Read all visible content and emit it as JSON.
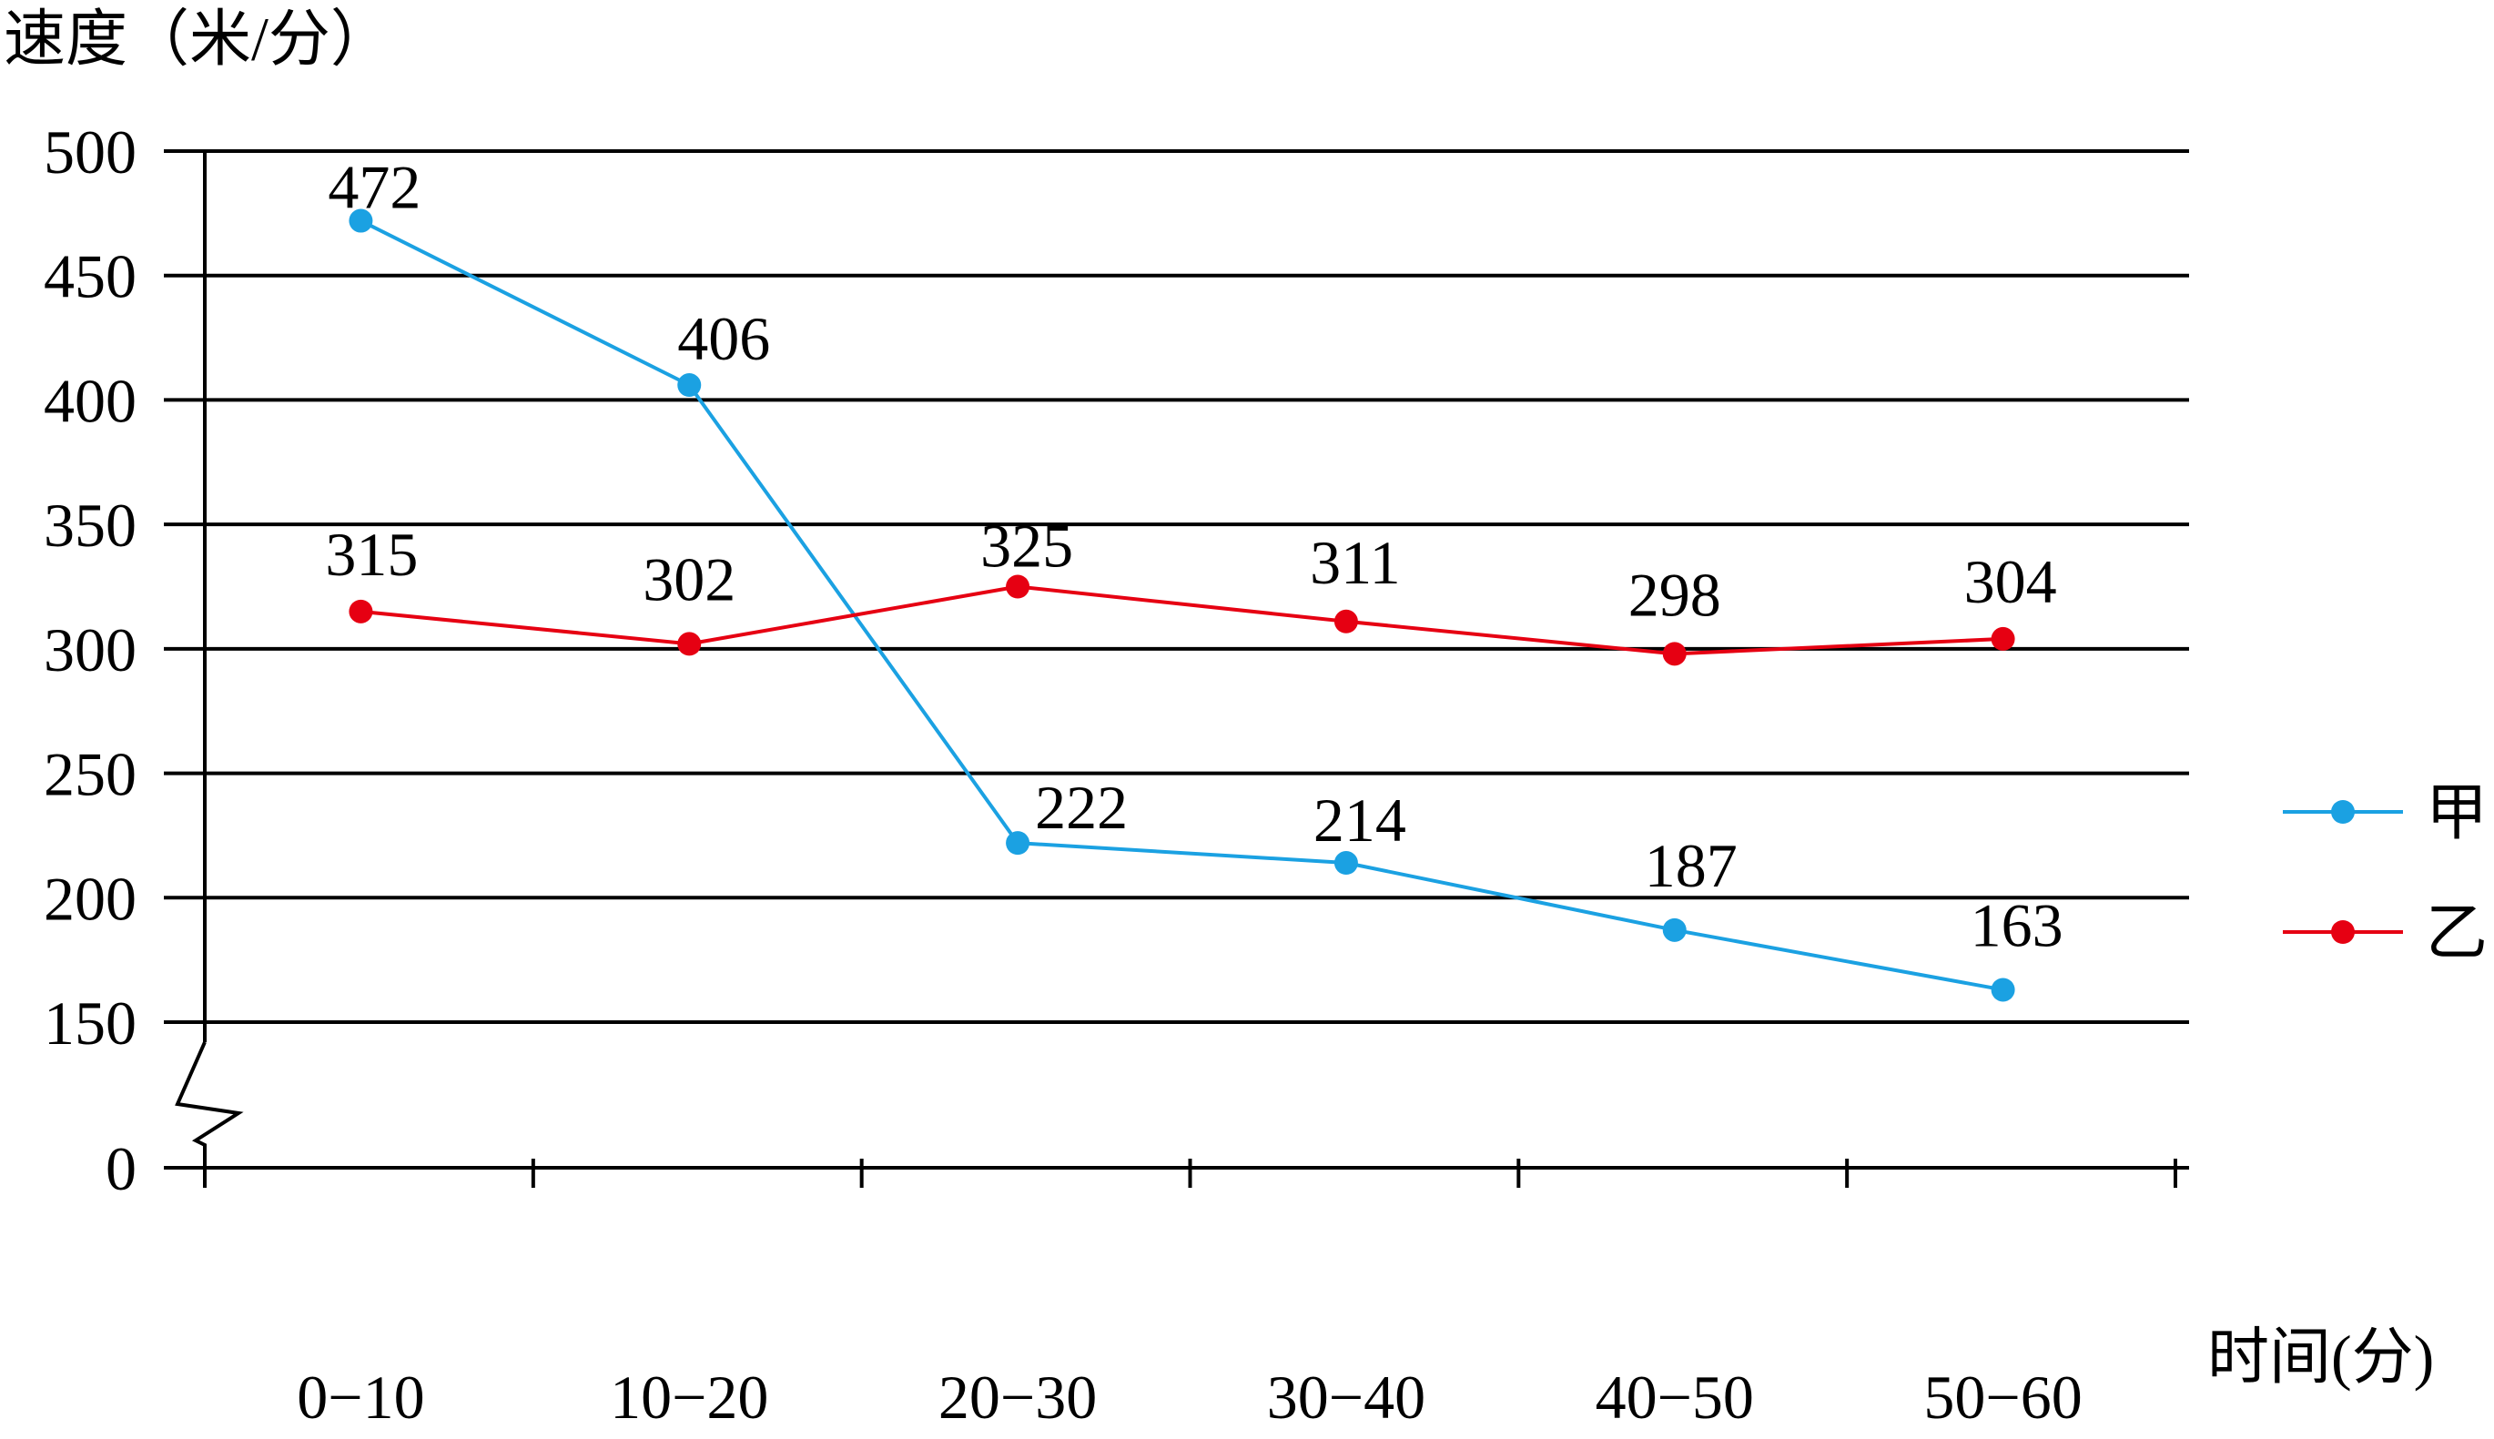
{
  "chart_data": {
    "type": "line",
    "title": "",
    "ylabel": "速度（米/分）",
    "xlabel": "时间(分)",
    "categories": [
      "0−10",
      "10−20",
      "20−30",
      "30−40",
      "40−50",
      "50−60"
    ],
    "y_ticks": [
      0,
      150,
      200,
      250,
      300,
      350,
      400,
      450,
      500
    ],
    "ylim": [
      150,
      500
    ],
    "y_axis_break": true,
    "grid": true,
    "legend": "right",
    "series": [
      {
        "name": "甲",
        "color": "#1ba1e2",
        "values": [
          472,
          406,
          222,
          214,
          187,
          163
        ],
        "labels": [
          "472",
          "406",
          "222",
          "214",
          "187",
          "163"
        ]
      },
      {
        "name": "乙",
        "color": "#e60012",
        "values": [
          315,
          302,
          325,
          311,
          298,
          304
        ],
        "labels": [
          "315",
          "302",
          "325",
          "311",
          "298",
          "304"
        ]
      }
    ]
  }
}
